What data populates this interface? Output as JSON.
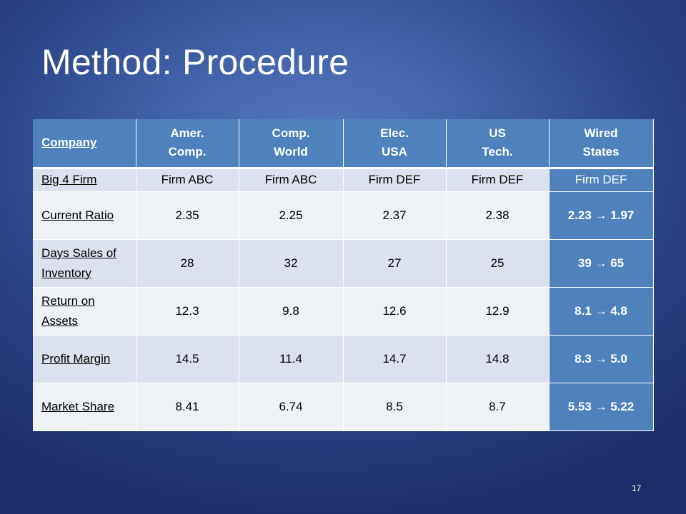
{
  "title": "Method: Procedure",
  "page_number": "17",
  "table": {
    "header": {
      "company": "Company",
      "columns": [
        {
          "line1": "Amer.",
          "line2": "Comp."
        },
        {
          "line1": "Comp.",
          "line2": "World"
        },
        {
          "line1": "Elec.",
          "line2": "USA"
        },
        {
          "line1": "US",
          "line2": "Tech."
        },
        {
          "line1": "Wired",
          "line2": "States"
        }
      ]
    },
    "rows": [
      {
        "label": "Big 4 Firm",
        "values": [
          "Firm ABC",
          "Firm ABC",
          "Firm DEF",
          "Firm DEF",
          "Firm DEF"
        ]
      },
      {
        "label": "Current Ratio",
        "values": [
          "2.35",
          "2.25",
          "2.37",
          "2.38",
          "2.23 → 1.97"
        ]
      },
      {
        "label": "Days Sales of Inventory",
        "values": [
          "28",
          "32",
          "27",
          "25",
          "39 → 65"
        ]
      },
      {
        "label": "Return on Assets",
        "values": [
          "12.3",
          "9.8",
          "12.6",
          "12.9",
          "8.1 → 4.8"
        ]
      },
      {
        "label": "Profit Margin",
        "values": [
          "14.5",
          "11.4",
          "14.7",
          "14.8",
          "8.3 → 5.0"
        ]
      },
      {
        "label": "Market Share",
        "values": [
          "8.41",
          "6.74",
          "8.5",
          "8.7",
          "5.53 → 5.22"
        ]
      }
    ]
  },
  "colors": {
    "header_bg": "#4f81bd",
    "row_dark": "#dbe1ee",
    "row_light": "#eef1f6",
    "highlight_column": "#4f81bd"
  }
}
